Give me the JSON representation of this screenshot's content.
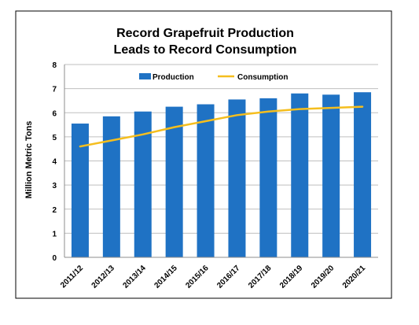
{
  "chart_data": {
    "type": "bar",
    "title_line1": "Record Grapefruit Production",
    "title_line2": "Leads to Record Consumption",
    "ylabel": "Million Metric Tons",
    "xlabel": "",
    "ylim": [
      0,
      8
    ],
    "yticks": [
      0,
      1,
      2,
      3,
      4,
      5,
      6,
      7,
      8
    ],
    "grid": true,
    "legend_position": "top-center",
    "categories": [
      "2011/12",
      "2012/13",
      "2013/14",
      "2014/15",
      "2015/16",
      "2016/17",
      "2017/18",
      "2018/19",
      "2019/20",
      "2020/21"
    ],
    "series": [
      {
        "name": "Production",
        "type": "bar",
        "color": "#1F72C4",
        "values": [
          5.55,
          5.85,
          6.05,
          6.25,
          6.35,
          6.55,
          6.6,
          6.8,
          6.75,
          6.85
        ]
      },
      {
        "name": "Consumption",
        "type": "line",
        "color": "#F5BE1E",
        "values": [
          4.6,
          4.85,
          5.1,
          5.4,
          5.65,
          5.9,
          6.05,
          6.15,
          6.2,
          6.25
        ]
      }
    ]
  }
}
